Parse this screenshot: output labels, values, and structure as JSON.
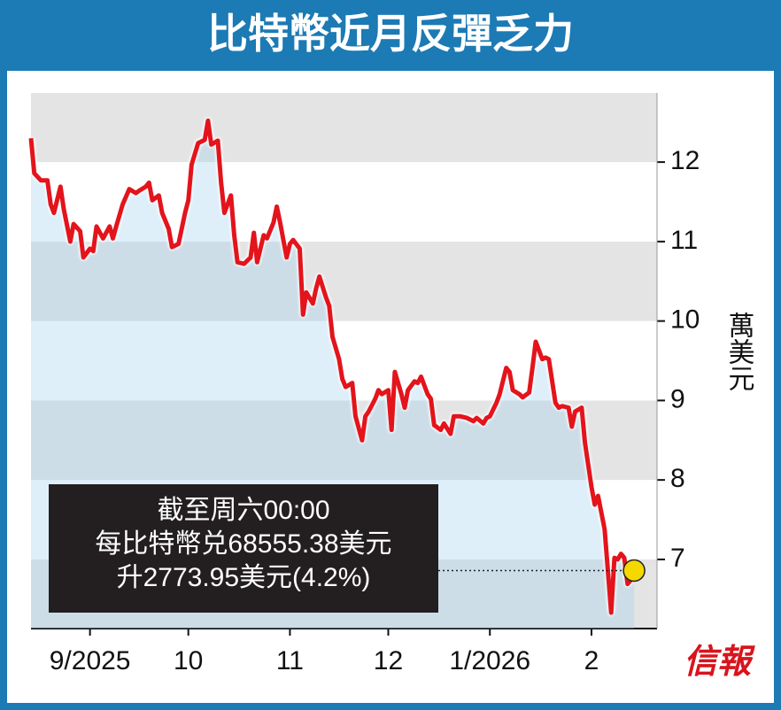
{
  "chart_data": {
    "type": "line",
    "title": "比特幣近月反彈乏力",
    "y_label": "萬美元",
    "source": "信報",
    "annotation": [
      "截至周六00:00",
      "每比特幣兑68555.38美元",
      "升2773.95美元(4.2%)"
    ],
    "xlim": [
      0,
      191
    ],
    "ylim": [
      6.13,
      12.87
    ],
    "xticks": [
      {
        "value": 18,
        "label": "9/2025"
      },
      {
        "value": 48,
        "label": "10"
      },
      {
        "value": 79,
        "label": "11"
      },
      {
        "value": 109,
        "label": "12"
      },
      {
        "value": 140,
        "label": "1/2026"
      },
      {
        "value": 171,
        "label": "2"
      }
    ],
    "yticks": [
      7,
      8,
      9,
      10,
      11,
      12
    ],
    "banded_grid": true,
    "area": true,
    "last_marker_color": "#f5d800",
    "series": [
      {
        "color": "#e3141c",
        "x": [
          0,
          1,
          3,
          5,
          6,
          7,
          9,
          10,
          12,
          13,
          15,
          16,
          18,
          19,
          20,
          22,
          24,
          25,
          26,
          28,
          30,
          32,
          33,
          35,
          36,
          37,
          39,
          40,
          42,
          43,
          45,
          47,
          48,
          49,
          51,
          53,
          54,
          55,
          57,
          58,
          59,
          61,
          62,
          63,
          65,
          67,
          68,
          69,
          71,
          72,
          74,
          75,
          76,
          78,
          79,
          80,
          82,
          83,
          84,
          86,
          87,
          88,
          90,
          91,
          92,
          94,
          95,
          96,
          98,
          99,
          101,
          102,
          103,
          105,
          106,
          107,
          109,
          110,
          111,
          113,
          114,
          115,
          117,
          118,
          119,
          121,
          122,
          123,
          125,
          126,
          128,
          129,
          131,
          133,
          135,
          136,
          138,
          139,
          140,
          142,
          143,
          145,
          146,
          147,
          149,
          150,
          152,
          153,
          154,
          156,
          157,
          158,
          160,
          161,
          162,
          164,
          165,
          166,
          168,
          169,
          171,
          172,
          173,
          175,
          176,
          177,
          178,
          179,
          180,
          181,
          182,
          183,
          184
        ],
        "values": [
          12.3,
          11.86,
          11.77,
          11.77,
          11.47,
          11.36,
          11.69,
          11.41,
          11.0,
          11.22,
          11.13,
          10.8,
          10.91,
          10.88,
          11.19,
          11.04,
          11.19,
          11.04,
          11.19,
          11.47,
          11.66,
          11.61,
          11.64,
          11.69,
          11.74,
          11.52,
          11.58,
          11.36,
          11.16,
          10.93,
          10.97,
          11.36,
          11.52,
          11.97,
          12.24,
          12.28,
          12.52,
          12.22,
          12.27,
          11.74,
          11.36,
          11.58,
          11.08,
          10.74,
          10.72,
          10.8,
          11.11,
          10.74,
          11.08,
          11.04,
          11.24,
          11.44,
          11.24,
          10.8,
          10.97,
          11.02,
          10.91,
          10.08,
          10.36,
          10.22,
          10.41,
          10.56,
          10.3,
          10.19,
          9.8,
          9.52,
          9.27,
          9.17,
          9.22,
          8.8,
          8.5,
          8.8,
          8.86,
          9.02,
          9.13,
          9.08,
          9.13,
          8.63,
          9.36,
          9.08,
          8.91,
          9.13,
          9.24,
          9.22,
          9.3,
          9.08,
          9.02,
          8.69,
          8.63,
          8.71,
          8.58,
          8.8,
          8.8,
          8.78,
          8.74,
          8.78,
          8.71,
          8.78,
          8.8,
          8.97,
          9.08,
          9.41,
          9.36,
          9.13,
          9.08,
          9.04,
          9.1,
          9.41,
          9.74,
          9.52,
          9.54,
          9.52,
          8.97,
          8.91,
          8.93,
          8.91,
          8.67,
          8.86,
          8.91,
          8.47,
          7.91,
          7.69,
          7.8,
          7.38,
          6.86,
          6.33,
          7.02,
          7.0,
          7.07,
          7.02,
          6.69,
          6.74,
          6.86
        ]
      }
    ]
  }
}
